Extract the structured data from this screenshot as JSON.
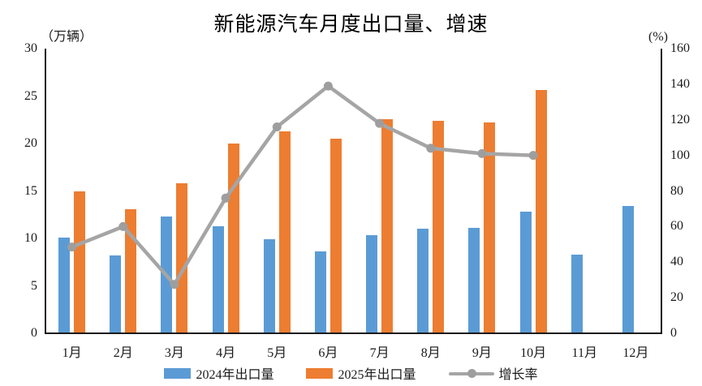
{
  "title": "新能源汽车月度出口量、增速",
  "legend": {
    "series_2024_label": "2024年出口量",
    "series_2025_label": "2025年出口量",
    "growth_label": "增长率"
  },
  "colors": {
    "bar_2024": "#5B9BD5",
    "bar_2025": "#ED7D31",
    "growth_line": "#A5A5A5",
    "growth_marker": "#9E9E9E",
    "axis": "#1A1A1A"
  },
  "chart_data": {
    "type": "bar",
    "subtype": "grouped-bars-with-line-overlay",
    "title": "新能源汽车月度出口量、增速",
    "categories": [
      "1月",
      "2月",
      "3月",
      "4月",
      "5月",
      "6月",
      "7月",
      "8月",
      "9月",
      "10月",
      "11月",
      "12月"
    ],
    "series": [
      {
        "name": "2024年出口量",
        "type": "bar",
        "axis": "left",
        "color": "#5B9BD5",
        "values": [
          10.1,
          8.2,
          12.3,
          11.3,
          9.9,
          8.6,
          10.3,
          11.0,
          11.1,
          12.8,
          8.3,
          13.4
        ]
      },
      {
        "name": "2025年出口量",
        "type": "bar",
        "axis": "left",
        "color": "#ED7D31",
        "values": [
          15.0,
          13.1,
          15.8,
          20.0,
          21.3,
          20.5,
          22.6,
          22.4,
          22.2,
          25.6,
          null,
          null
        ]
      },
      {
        "name": "增长率",
        "type": "line",
        "axis": "right",
        "color": "#A5A5A5",
        "values": [
          48.5,
          60,
          27.5,
          76,
          116,
          139,
          118,
          104,
          101,
          100,
          null,
          null
        ]
      }
    ],
    "left_axis": {
      "unit": "（万辆）",
      "min": 0,
      "max": 30,
      "ticks": [
        0,
        5,
        10,
        15,
        20,
        25,
        30
      ]
    },
    "right_axis": {
      "unit": "(%)",
      "min": 0,
      "max": 160,
      "ticks": [
        0,
        20,
        40,
        60,
        80,
        100,
        120,
        140,
        160
      ]
    },
    "grid": false,
    "legend_position": "bottom"
  }
}
